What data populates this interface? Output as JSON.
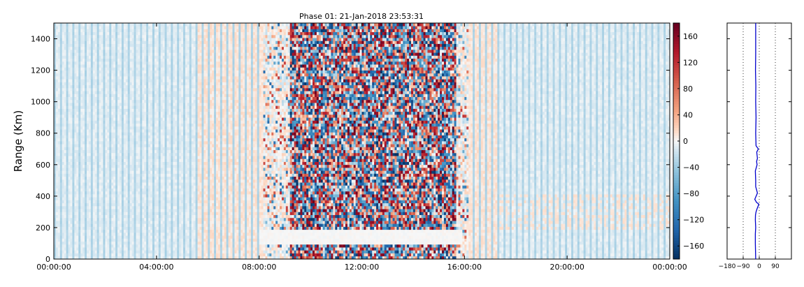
{
  "chart_data": [
    {
      "type": "heatmap",
      "title": "Phase 01: 21-Jan-2018 23:53:31",
      "ylabel": "Range (Km)",
      "xlabel": "",
      "x_ticks": [
        "00:00:00",
        "04:00:00",
        "08:00:00",
        "12:00:00",
        "16:00:00",
        "20:00:00",
        "00:00:00"
      ],
      "xlim_hours": [
        0,
        24
      ],
      "ylim": [
        0,
        1500
      ],
      "y_ticks": [
        0,
        200,
        400,
        600,
        800,
        1000,
        1200,
        1400
      ],
      "colormap": "RdBu_r",
      "colors": {
        "low": "#053061",
        "mid": "#f7f7f7",
        "high": "#67001f"
      },
      "colorbar": {
        "range": [
          -180,
          180
        ],
        "ticks": [
          -160,
          -120,
          -80,
          -40,
          0,
          40,
          80,
          120,
          160
        ]
      },
      "noisy_band_hours": [
        9.2,
        15.7
      ],
      "moderate_band_hours": [
        8.2,
        16.2
      ],
      "data_gap_range_km": [
        100,
        180
      ],
      "warm_band_hours": [
        5.5,
        9.0
      ],
      "warm_band_hours_2": [
        16.2,
        17.3
      ],
      "regions": [
        {
          "region": "00:00-05:30",
          "mean_phase_deg": -10,
          "spread_deg": 8
        },
        {
          "region": "05:30-08:00",
          "mean_phase_deg": 10,
          "spread_deg": 10
        },
        {
          "region": "09:12-15:42",
          "mean_phase_deg": 0,
          "spread_deg": 180
        },
        {
          "region": "17:20-24:00",
          "mean_phase_deg": -3,
          "spread_deg": 10
        }
      ]
    },
    {
      "type": "line",
      "title": "",
      "xlim": [
        -180,
        180
      ],
      "x_ticks": [
        -180,
        -90,
        0,
        90
      ],
      "x_tick_labels": [
        "−180",
        "−90",
        "0",
        "90"
      ],
      "ylim": [
        0,
        1500
      ],
      "grid_x": [
        -90,
        0,
        90
      ],
      "series": [
        {
          "color": "#0000cc",
          "range_km": [
            0,
            100,
            160,
            200,
            250,
            280,
            300,
            320,
            340,
            350,
            360,
            380,
            420,
            440,
            460,
            500,
            560,
            600,
            620,
            640,
            680,
            700,
            720,
            800,
            900,
            1000,
            1100,
            1200,
            1300,
            1400,
            1500
          ],
          "phase_deg": [
            -20,
            -22,
            -22,
            -20,
            -22,
            -21,
            -18,
            -12,
            -5,
            -3,
            -15,
            -25,
            -10,
            -15,
            -20,
            -20,
            -22,
            -12,
            -15,
            -10,
            -14,
            -5,
            -18,
            -20,
            -18,
            -20,
            -19,
            -21,
            -20,
            -20,
            -20
          ]
        }
      ]
    }
  ]
}
